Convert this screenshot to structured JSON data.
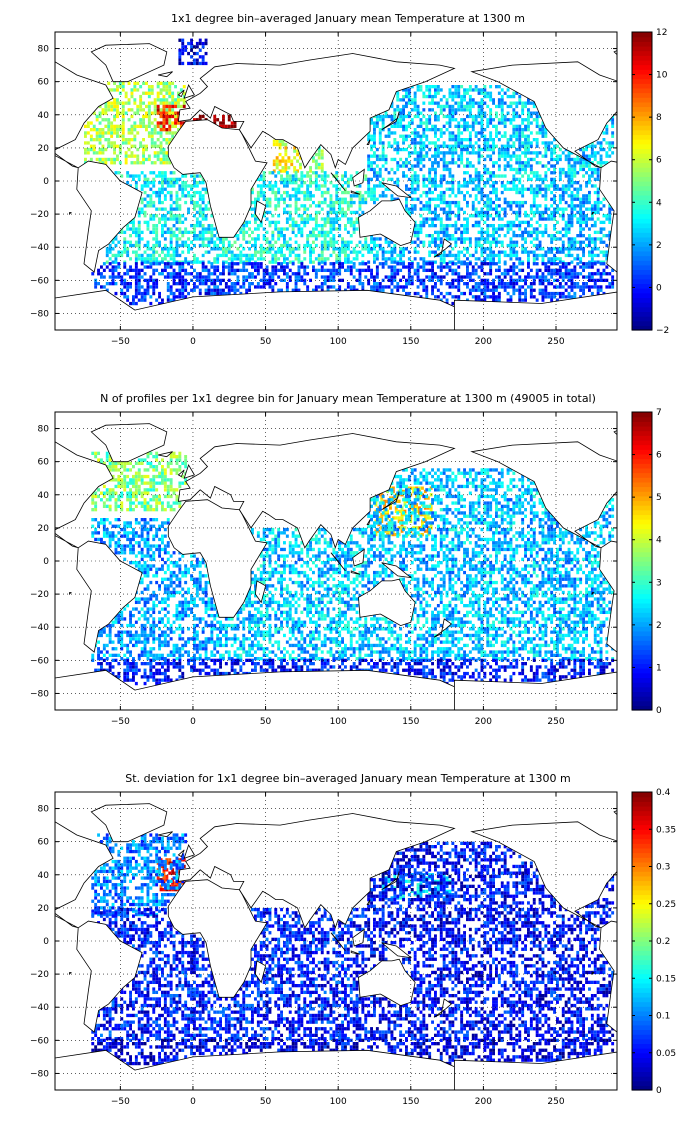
{
  "chart_data": [
    {
      "type": "heatmap",
      "title": "1x1 degree bin–averaged January mean Temperature at 1300 m",
      "x_ticks": [
        -50,
        0,
        50,
        100,
        150,
        200,
        250
      ],
      "y_ticks": [
        80,
        60,
        40,
        20,
        0,
        -20,
        -40,
        -60,
        -80
      ],
      "xlim": [
        -95,
        292
      ],
      "ylim": [
        -90,
        90
      ],
      "grid": true,
      "colorbar": {
        "min": -2,
        "max": 12,
        "ticks": [
          -2,
          0,
          2,
          4,
          6,
          8,
          10,
          12
        ]
      },
      "colormap": "jet",
      "regions": [
        {
          "lon": [
            -75,
            -5
          ],
          "lat": [
            10,
            60
          ],
          "value": 5.5
        },
        {
          "lon": [
            -25,
            -5
          ],
          "lat": [
            30,
            45
          ],
          "value": 10
        },
        {
          "lon": [
            0,
            35
          ],
          "lat": [
            32,
            40
          ],
          "value": 12
        },
        {
          "lon": [
            55,
            75
          ],
          "lat": [
            5,
            25
          ],
          "value": 6.5
        },
        {
          "lon": [
            80,
            90
          ],
          "lat": [
            5,
            20
          ],
          "value": 5
        },
        {
          "lon": [
            -60,
            20
          ],
          "lat": [
            -50,
            5
          ],
          "value": 3.2
        },
        {
          "lon": [
            20,
            120
          ],
          "lat": [
            -50,
            5
          ],
          "value": 3.5
        },
        {
          "lon": [
            120,
            290
          ],
          "lat": [
            0,
            58
          ],
          "value": 2.6
        },
        {
          "lon": [
            120,
            290
          ],
          "lat": [
            -50,
            0
          ],
          "value": 2.4
        },
        {
          "lon": [
            -70,
            290
          ],
          "lat": [
            -75,
            -50
          ],
          "value": 0.5
        },
        {
          "lon": [
            -10,
            10
          ],
          "lat": [
            70,
            85
          ],
          "value": -0.5
        }
      ]
    },
    {
      "type": "heatmap",
      "title": "N of profiles per 1x1 degree bin for January mean Temperature at 1300 m (49005 in total)",
      "x_ticks": [
        -50,
        0,
        50,
        100,
        150,
        200,
        250
      ],
      "y_ticks": [
        80,
        60,
        40,
        20,
        0,
        -20,
        -40,
        -60,
        -80
      ],
      "xlim": [
        -95,
        292
      ],
      "ylim": [
        -90,
        90
      ],
      "grid": true,
      "colorbar": {
        "min": 0,
        "max": 7,
        "ticks": [
          0,
          1,
          2,
          3,
          4,
          5,
          6,
          7
        ]
      },
      "colormap": "jet",
      "regions": [
        {
          "lon": [
            -70,
            -5
          ],
          "lat": [
            30,
            65
          ],
          "value": 3.5
        },
        {
          "lon": [
            125,
            165
          ],
          "lat": [
            15,
            45
          ],
          "value": 4.5
        },
        {
          "lon": [
            120,
            290
          ],
          "lat": [
            -60,
            55
          ],
          "value": 2.2
        },
        {
          "lon": [
            -70,
            20
          ],
          "lat": [
            -60,
            25
          ],
          "value": 2
        },
        {
          "lon": [
            20,
            120
          ],
          "lat": [
            -60,
            20
          ],
          "value": 2.3
        },
        {
          "lon": [
            -70,
            290
          ],
          "lat": [
            -75,
            -60
          ],
          "value": 1
        }
      ]
    },
    {
      "type": "heatmap",
      "title": "St. deviation for 1x1 degree bin–averaged January mean Temperature at 1300 m",
      "x_ticks": [
        -50,
        0,
        50,
        100,
        150,
        200,
        250
      ],
      "y_ticks": [
        80,
        60,
        40,
        20,
        0,
        -20,
        -40,
        -60,
        -80
      ],
      "xlim": [
        -95,
        292
      ],
      "ylim": [
        -90,
        90
      ],
      "grid": true,
      "colorbar": {
        "min": 0,
        "max": 0.4,
        "ticks": [
          0,
          0.05,
          0.1,
          0.15,
          0.2,
          0.25,
          0.3,
          0.35,
          0.4
        ]
      },
      "colormap": "jet",
      "regions": [
        {
          "lon": [
            -25,
            -5
          ],
          "lat": [
            30,
            50
          ],
          "value": 0.35
        },
        {
          "lon": [
            -70,
            -5
          ],
          "lat": [
            15,
            65
          ],
          "value": 0.1
        },
        {
          "lon": [
            130,
            180
          ],
          "lat": [
            25,
            40
          ],
          "value": 0.13
        },
        {
          "lon": [
            120,
            290
          ],
          "lat": [
            -60,
            60
          ],
          "value": 0.05
        },
        {
          "lon": [
            -70,
            120
          ],
          "lat": [
            -60,
            20
          ],
          "value": 0.06
        },
        {
          "lon": [
            -70,
            290
          ],
          "lat": [
            -75,
            -60
          ],
          "value": 0.04
        }
      ]
    }
  ]
}
